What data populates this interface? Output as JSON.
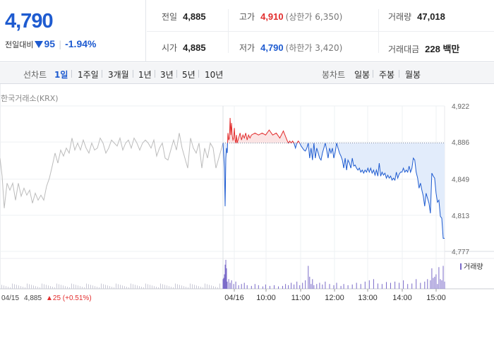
{
  "quote": {
    "price": "4,790",
    "change_label": "전일대비",
    "change_amount": "95",
    "change_rate": "-1.94%",
    "fields": {
      "prev_close": {
        "label": "전일",
        "value": "4,885"
      },
      "high": {
        "label": "고가",
        "value": "4,910",
        "sub": "(상한가 6,350)"
      },
      "volume": {
        "label": "거래량",
        "value": "47,018"
      },
      "open": {
        "label": "시가",
        "value": "4,885"
      },
      "low": {
        "label": "저가",
        "value": "4,790",
        "sub": "(하한가 3,420)"
      },
      "amount": {
        "label": "거래대금",
        "value": "228 백만"
      }
    }
  },
  "tabs": {
    "line_label": "선차트",
    "line": [
      "1일",
      "1주일",
      "3개월",
      "1년",
      "3년",
      "5년",
      "10년"
    ],
    "line_active": 0,
    "candle_label": "봉차트",
    "candle": [
      "일봉",
      "주봉",
      "월봉"
    ]
  },
  "chart": {
    "source": "한국거래소(KRX)",
    "volume_legend": "거래량",
    "prev_day": {
      "date": "04/15",
      "price": "4,885",
      "change": "▲25 (+0.51%)"
    },
    "colors": {
      "up": "#e22d2d",
      "down": "#1e5bd0",
      "prev": "#bcbcbc",
      "fill_down": "#e2ecfb",
      "fill_up": "#fbe4e4",
      "volume": "#7b6bc9"
    }
  },
  "chart_data": {
    "type": "line",
    "x_ticks": [
      "04/16",
      "10:00",
      "11:00",
      "12:00",
      "13:00",
      "14:00",
      "15:00"
    ],
    "y_ticks": [
      "4,922",
      "4,886",
      "4,849",
      "4,813",
      "4,777"
    ],
    "ylim": [
      4777,
      4922
    ],
    "baseline": 4885,
    "grid": true,
    "prev_series": {
      "name": "04/15",
      "t": [
        0,
        3,
        6,
        10,
        14,
        18,
        22,
        26,
        30,
        34,
        38,
        42,
        46,
        50,
        54,
        58,
        62,
        66,
        70,
        74,
        78,
        82,
        86,
        90,
        94,
        98,
        102,
        106,
        110,
        114,
        118,
        122,
        126,
        130,
        134,
        138,
        142,
        146,
        150,
        154,
        158,
        162,
        166,
        170,
        174,
        178,
        182,
        186,
        190,
        194,
        198,
        202,
        206,
        210,
        214,
        218,
        222,
        226,
        230,
        234,
        238,
        242,
        246,
        250,
        254,
        258,
        262,
        266,
        270,
        274,
        278,
        282,
        286,
        290,
        294,
        298,
        302,
        306,
        310,
        314,
        316
      ],
      "v": [
        4870,
        4852,
        4820,
        4845,
        4838,
        4845,
        4828,
        4845,
        4832,
        4840,
        4833,
        4838,
        4825,
        4835,
        4828,
        4833,
        4828,
        4842,
        4850,
        4862,
        4875,
        4865,
        4878,
        4872,
        4880,
        4875,
        4890,
        4878,
        4885,
        4878,
        4888,
        4880,
        4875,
        4885,
        4878,
        4880,
        4890,
        4885,
        4875,
        4880,
        4888,
        4885,
        4882,
        4890,
        4878,
        4885,
        4888,
        4880,
        4890,
        4885,
        4878,
        4885,
        4888,
        4885,
        4880,
        4888,
        4872,
        4880,
        4885,
        4870,
        4868,
        4878,
        4888,
        4878,
        4895,
        4880,
        4870,
        4860,
        4890,
        4880,
        4875,
        4885,
        4860,
        4880,
        4870,
        4885,
        4880,
        4860,
        4870,
        4880,
        4885
      ]
    },
    "series": [
      {
        "t": [
          0,
          2,
          3,
          4,
          5,
          6,
          7,
          8,
          9,
          10,
          11,
          12,
          13,
          14,
          15,
          16,
          17,
          18,
          19,
          20,
          22,
          24,
          26,
          28,
          30,
          32,
          34,
          36,
          38,
          40,
          45,
          50,
          55,
          60,
          65,
          70,
          75,
          80,
          85,
          90,
          92,
          94,
          96,
          98,
          100,
          102,
          104,
          106,
          108,
          110,
          112,
          114,
          116,
          118,
          120,
          122,
          124,
          126,
          128,
          130,
          132,
          134,
          136,
          138,
          140,
          142,
          144,
          146,
          148,
          150,
          152,
          154,
          156,
          158,
          160,
          162,
          164,
          166,
          168,
          170,
          172,
          174,
          176,
          178,
          180,
          182,
          184,
          186,
          188,
          190,
          192,
          194,
          196,
          198,
          200,
          202,
          204,
          206,
          208,
          210,
          212,
          214,
          216,
          218,
          220,
          222,
          224,
          226,
          228,
          230,
          232,
          234,
          236,
          238,
          240,
          242,
          244,
          246,
          248,
          250,
          252,
          254,
          256,
          258,
          260,
          262,
          264,
          266,
          268,
          270,
          272,
          274,
          276,
          278,
          280,
          282,
          284,
          286,
          288,
          290,
          292,
          294,
          296,
          298,
          300,
          302,
          304,
          306,
          308,
          310,
          312
        ],
        "v": [
          4885,
          4860,
          4822,
          4870,
          4880,
          4875,
          4895,
          4888,
          4890,
          4910,
          4893,
          4905,
          4892,
          4888,
          4890,
          4900,
          4888,
          4885,
          4893,
          4885,
          4890,
          4895,
          4888,
          4893,
          4890,
          4895,
          4888,
          4893,
          4890,
          4893,
          4895,
          4893,
          4895,
          4893,
          4898,
          4893,
          4895,
          4890,
          4897,
          4888,
          4885,
          4887,
          4885,
          4887,
          4885,
          4880,
          4885,
          4887,
          4885,
          4882,
          4880,
          4878,
          4877,
          4880,
          4885,
          4870,
          4880,
          4868,
          4885,
          4870,
          4880,
          4875,
          4870,
          4868,
          4875,
          4880,
          4885,
          4878,
          4870,
          4880,
          4875,
          4880,
          4870,
          4876,
          4885,
          4880,
          4875,
          4872,
          4868,
          4860,
          4870,
          4858,
          4868,
          4865,
          4860,
          4870,
          4862,
          4863,
          4860,
          4858,
          4860,
          4856,
          4858,
          4855,
          4858,
          4856,
          4860,
          4856,
          4860,
          4855,
          4858,
          4853,
          4858,
          4852,
          4865,
          4852,
          4856,
          4853,
          4855,
          4850,
          4853,
          4850,
          4852,
          4848,
          4850,
          4848,
          4856,
          4850,
          4854,
          4856,
          4856,
          4860,
          4856,
          4858,
          4856,
          4862,
          4856,
          4860,
          4870,
          4868,
          4856,
          4850,
          4840,
          4845,
          4838,
          4832,
          4822,
          4835,
          4830,
          4825,
          4815,
          4855,
          4852,
          4850,
          4835,
          4826,
          4828,
          4812,
          4810,
          4790,
          4790
        ]
      }
    ],
    "volume": {
      "legend": "거래량",
      "t": [
        0,
        1,
        2,
        3,
        4,
        5,
        6,
        8,
        10,
        12,
        15,
        18,
        22,
        26,
        30,
        34,
        40,
        45,
        50,
        56,
        60,
        66,
        72,
        78,
        84,
        88,
        92,
        96,
        100,
        104,
        108,
        112,
        116,
        120,
        122,
        124,
        126,
        128,
        132,
        136,
        140,
        144,
        150,
        156,
        160,
        166,
        170,
        176,
        182,
        188,
        194,
        200,
        206,
        212,
        218,
        224,
        230,
        236,
        242,
        248,
        254,
        260,
        266,
        272,
        278,
        284,
        288,
        292,
        294,
        296,
        298,
        300,
        302,
        304,
        306,
        308,
        310,
        312
      ],
      "v": [
        40,
        45,
        60,
        100,
        120,
        85,
        30,
        40,
        25,
        35,
        20,
        30,
        15,
        20,
        25,
        15,
        12,
        20,
        15,
        10,
        18,
        12,
        15,
        10,
        12,
        20,
        15,
        25,
        18,
        30,
        15,
        25,
        35,
        95,
        50,
        20,
        40,
        15,
        20,
        25,
        18,
        30,
        20,
        15,
        25,
        12,
        20,
        15,
        18,
        25,
        20,
        30,
        35,
        40,
        22,
        20,
        28,
        25,
        30,
        25,
        35,
        20,
        22,
        40,
        25,
        30,
        40,
        35,
        85,
        45,
        50,
        60,
        20,
        90,
        40,
        35,
        95,
        30
      ]
    }
  }
}
